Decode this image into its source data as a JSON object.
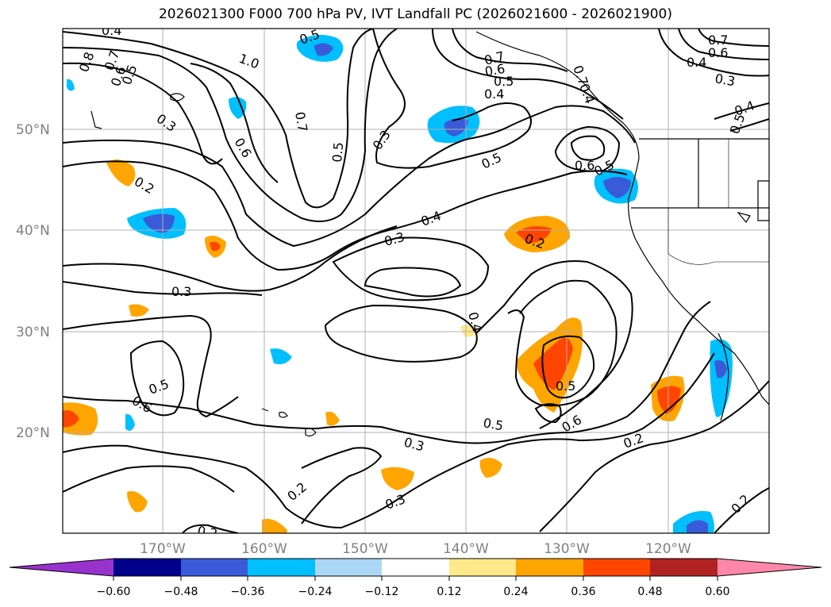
{
  "title": "2026021300 F000 700 hPa PV, IVT Landfall PC (2026021600 - 2026021900)",
  "lat_labels": [
    "50°N",
    "40°N",
    "30°N",
    "20°N"
  ],
  "lon_labels": [
    "170°W",
    "160°W",
    "150°W",
    "140°W",
    "130°W",
    "120°W"
  ],
  "contour_labels": [
    "0.4",
    "0.8",
    "0.7",
    "0.6",
    "0.5",
    "1.0",
    "0.3",
    "0.6",
    "0.7",
    "0.5",
    "0.5",
    "0.2",
    "0.3",
    "0.3",
    "0.4",
    "0.5",
    "0.3",
    "0.2",
    "0.4",
    "0.7",
    "0.6",
    "0.5",
    "0.4",
    "0.7",
    "0.4",
    "0.6",
    "0.5",
    "0.7",
    "0.6",
    "0.4",
    "0.3",
    "0.4",
    "0.5",
    "0.5",
    "0.6",
    "0.5",
    "0.6",
    "0.5",
    "0.2",
    "0.3",
    "0.2",
    "0.3",
    "0.2",
    "0.2"
  ],
  "colorbar": {
    "ticks": [
      "−0.60",
      "−0.48",
      "−0.36",
      "−0.24",
      "−0.12",
      "0.12",
      "0.24",
      "0.36",
      "0.48",
      "0.60"
    ],
    "colors": [
      "#9932cc",
      "#00008b",
      "#3a5bd9",
      "#00bfff",
      "#add8f5",
      "#ffffff",
      "#ffe98a",
      "#ffa500",
      "#ff4500",
      "#b22222",
      "#ff88aa"
    ]
  }
}
